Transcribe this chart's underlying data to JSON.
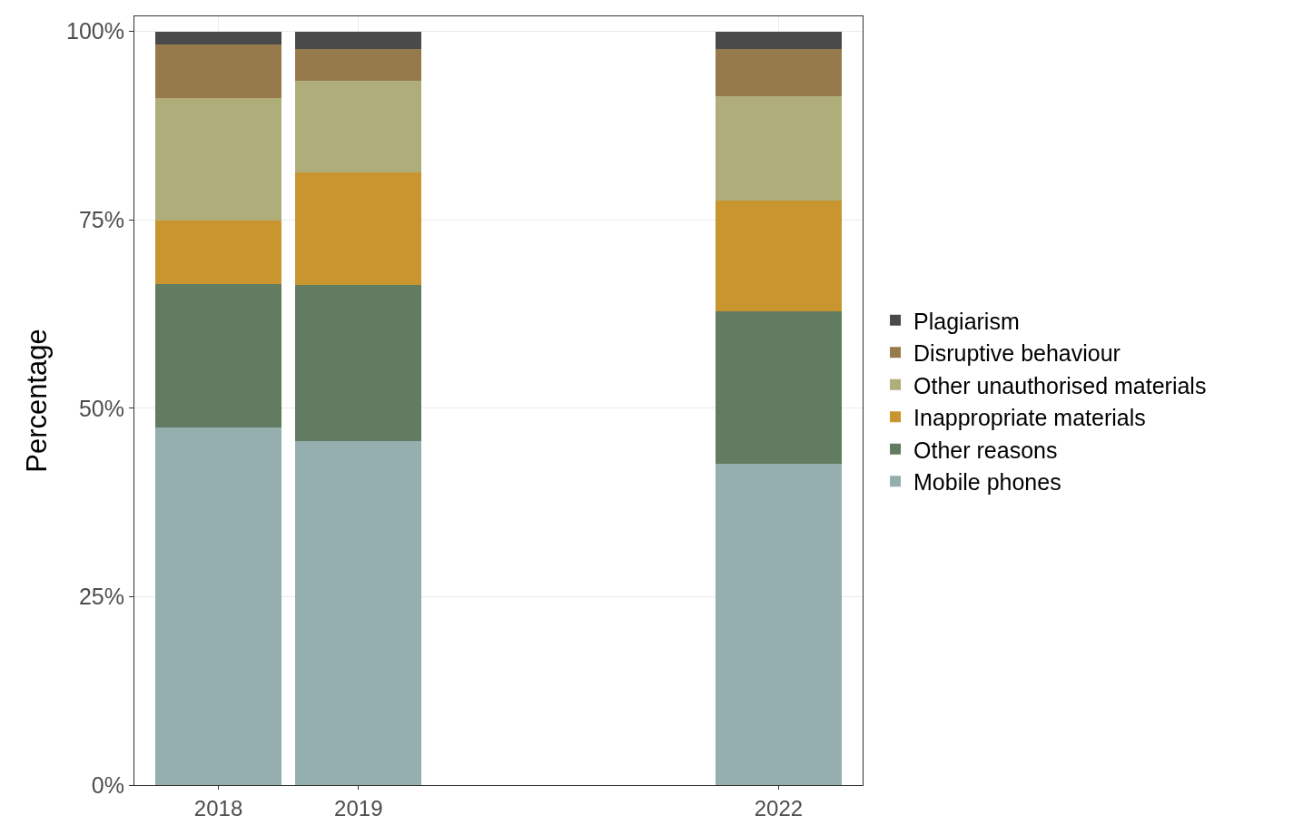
{
  "chart_data": {
    "type": "bar",
    "stacked": true,
    "ylabel": "Percentage",
    "x": [
      2018,
      2019,
      2022
    ],
    "xlim": [
      2017.4,
      2022.6
    ],
    "xticks": [
      2018,
      2019,
      2022
    ],
    "ylim": [
      0,
      102
    ],
    "yticks": [
      {
        "value": 0,
        "label": "0%"
      },
      {
        "value": 25,
        "label": "25%"
      },
      {
        "value": 50,
        "label": "50%"
      },
      {
        "value": 75,
        "label": "75%"
      },
      {
        "value": 100,
        "label": "100%"
      }
    ],
    "grid": true,
    "legend": "right",
    "series": [
      {
        "name": "Mobile phones",
        "color": "#95aeae",
        "values": [
          47.4,
          45.6,
          42.6
        ]
      },
      {
        "name": "Other reasons",
        "color": "#627c62",
        "values": [
          19.1,
          20.8,
          20.3
        ]
      },
      {
        "name": "Inappropriate materials",
        "color": "#c8952f",
        "values": [
          8.4,
          14.9,
          14.7
        ]
      },
      {
        "name": "Other unauthorised materials",
        "color": "#afae7b",
        "values": [
          16.3,
          12.2,
          13.8
        ]
      },
      {
        "name": "Disruptive behaviour",
        "color": "#977a4b",
        "values": [
          7.1,
          4.2,
          6.3
        ]
      },
      {
        "name": "Plagiarism",
        "color": "#4a4a4a",
        "values": [
          1.7,
          2.3,
          2.3
        ]
      }
    ]
  }
}
